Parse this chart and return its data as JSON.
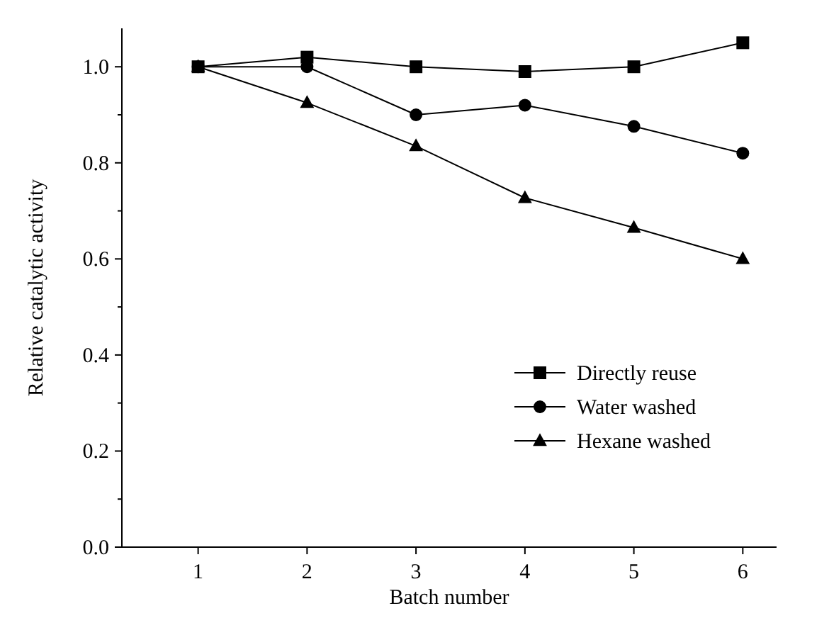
{
  "chart_data": {
    "type": "line",
    "xlabel": "Batch number",
    "ylabel": "Relative catalytic activity",
    "x": [
      1,
      2,
      3,
      4,
      5,
      6
    ],
    "series": [
      {
        "name": "Directly reuse",
        "color": "#000000",
        "marker": "square",
        "values": [
          1.0,
          1.02,
          1.0,
          0.99,
          1.0,
          1.05
        ]
      },
      {
        "name": "Water washed",
        "color": "#000000",
        "marker": "circle",
        "values": [
          1.0,
          1.0,
          0.9,
          0.92,
          0.876,
          0.82
        ]
      },
      {
        "name": "Hexane washed",
        "color": "#000000",
        "marker": "triangle",
        "values": [
          1.0,
          0.925,
          0.835,
          0.727,
          0.665,
          0.6
        ]
      }
    ],
    "xlim": [
      0.3,
      6.31
    ],
    "xticks": [
      1,
      2,
      3,
      4,
      5,
      6
    ],
    "ylim": [
      0,
      1.08
    ],
    "yticks": [
      {
        "value": 0,
        "label": "0.0"
      },
      {
        "value": 0.1,
        "label": null
      },
      {
        "value": 0.2,
        "label": "0.2"
      },
      {
        "value": 0.3,
        "label": null
      },
      {
        "value": 0.4,
        "label": "0.4"
      },
      {
        "value": 0.5,
        "label": null
      },
      {
        "value": 0.6,
        "label": "0.6"
      },
      {
        "value": 0.7,
        "label": null
      },
      {
        "value": 0.8,
        "label": "0.8"
      },
      {
        "value": 0.9,
        "label": null
      },
      {
        "value": 1,
        "label": "1.0"
      }
    ],
    "grid": false,
    "legend": "right",
    "line_style": "solid"
  }
}
